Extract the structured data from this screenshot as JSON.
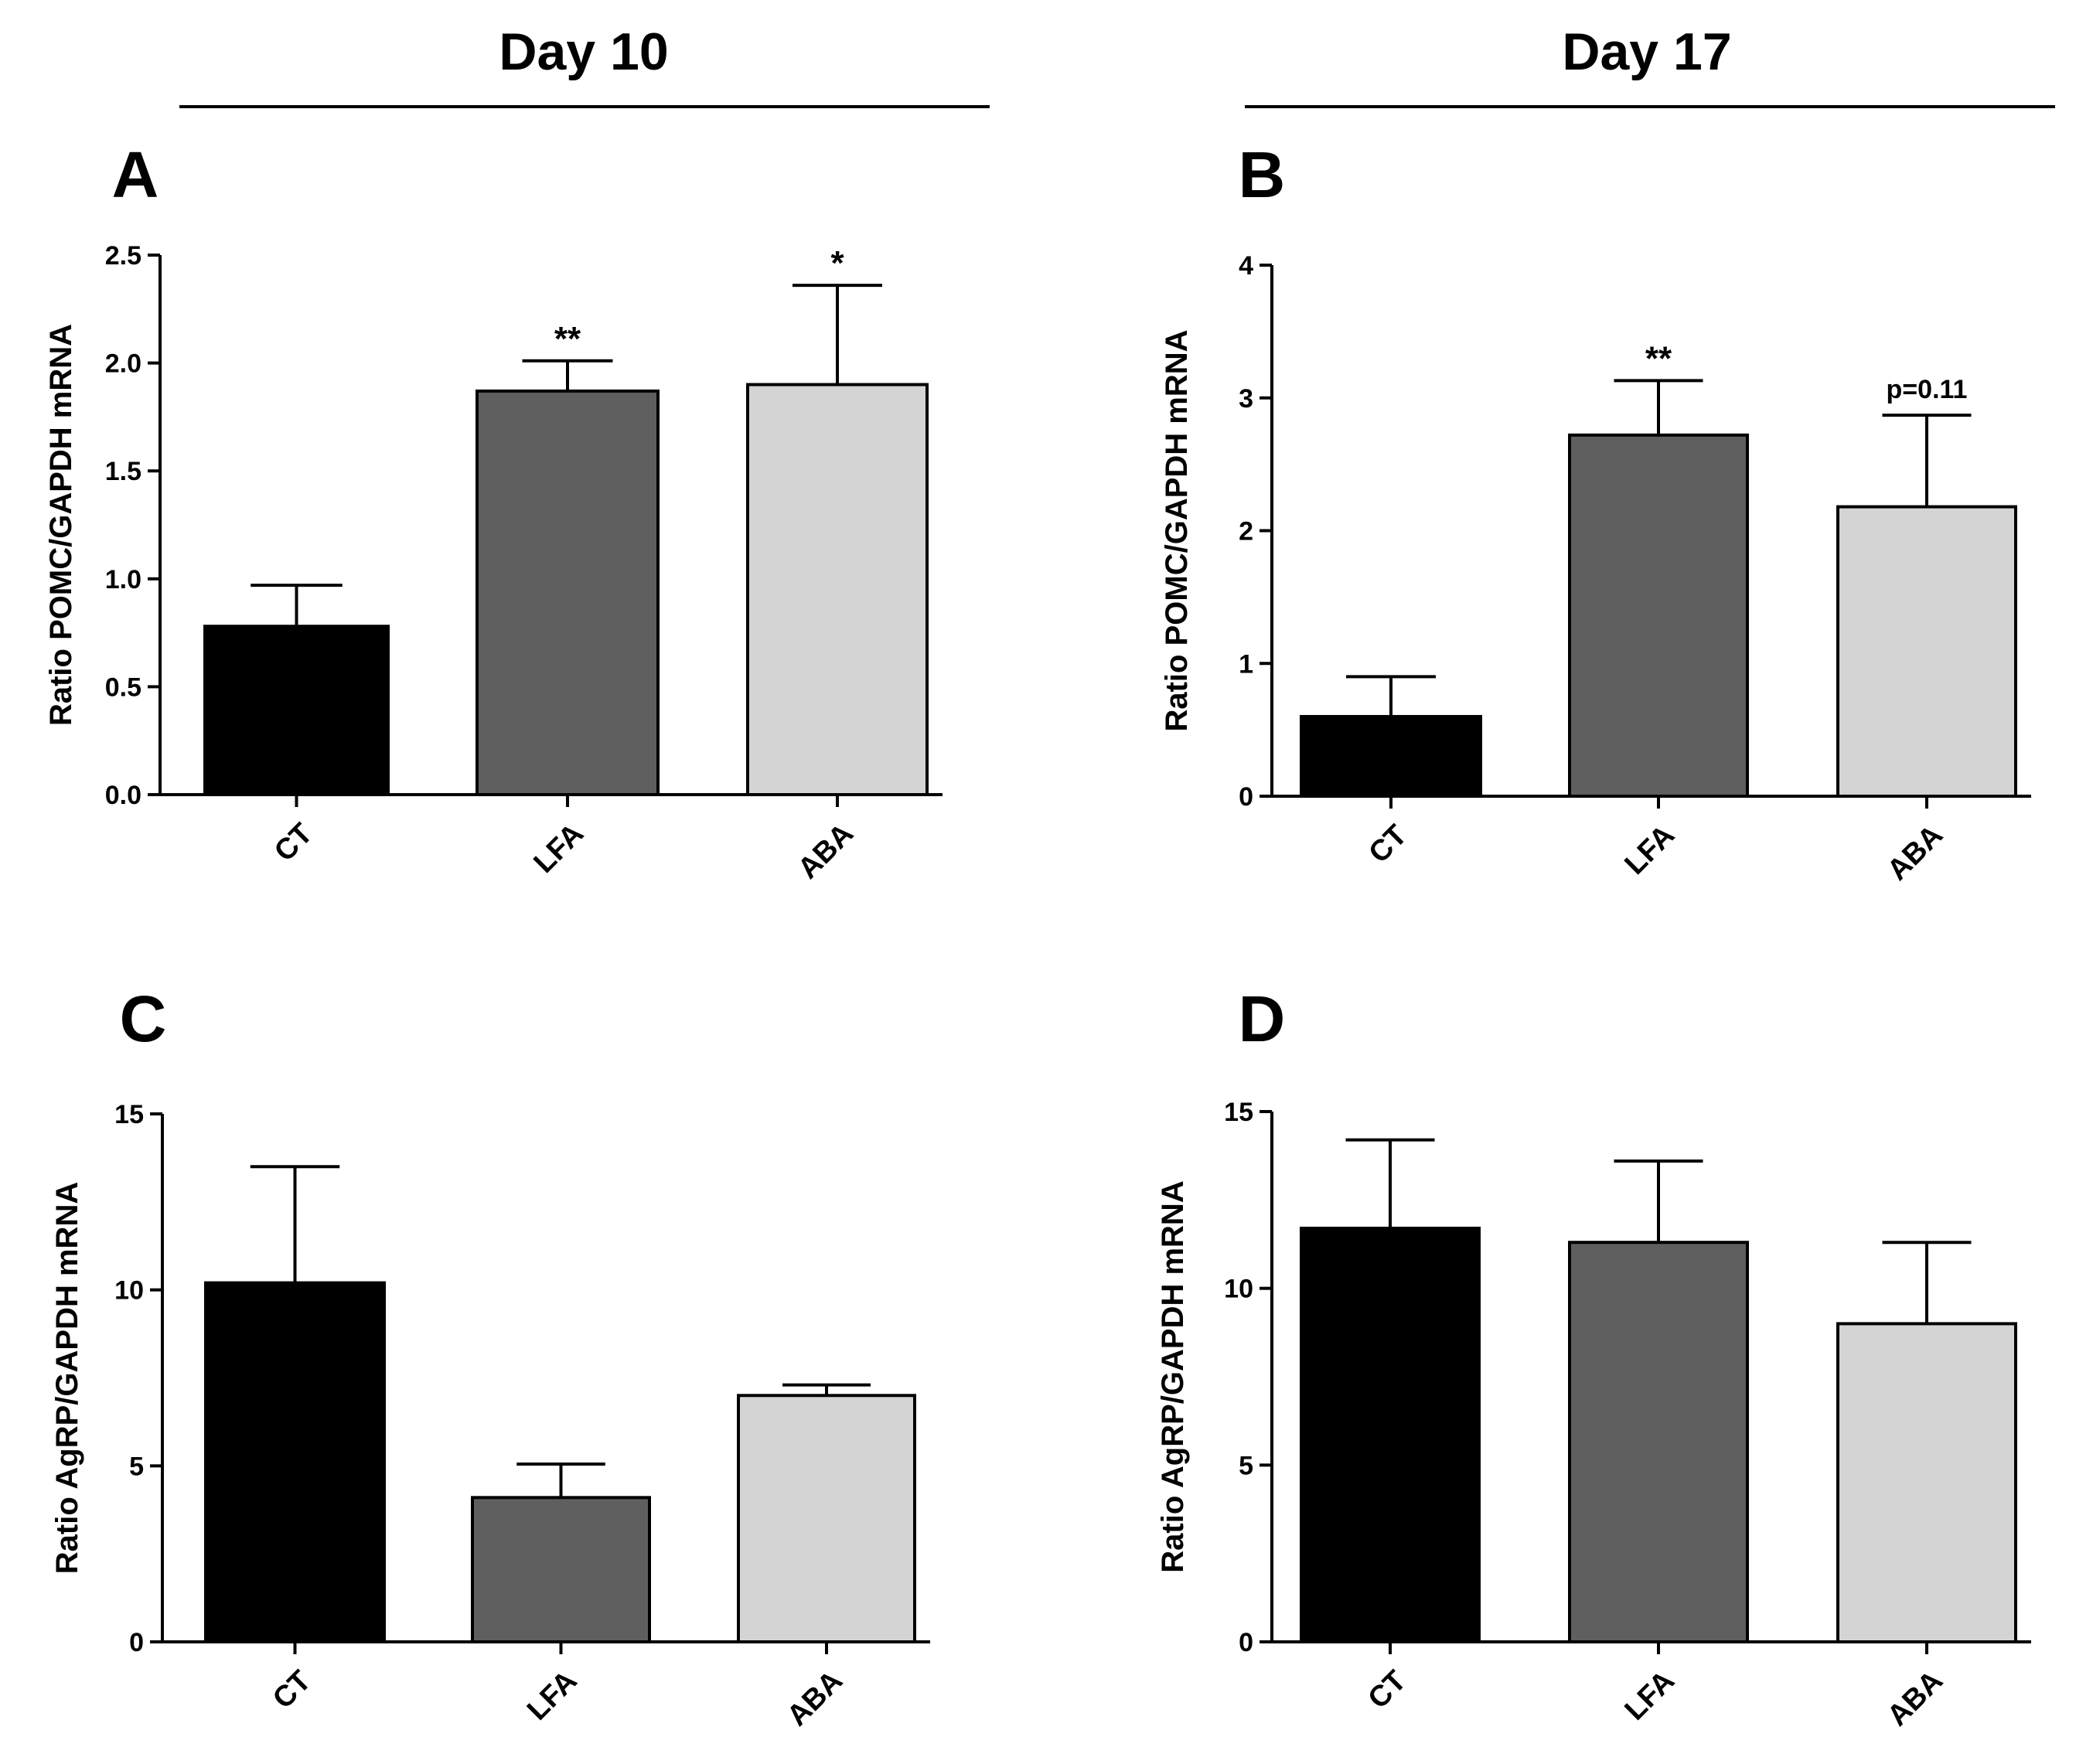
{
  "header": {
    "left_title": "Day 10",
    "right_title": "Day 17"
  },
  "colors": {
    "CT": "#000000",
    "LFA": "#5f5f5f",
    "ABA": "#d4d4d4"
  },
  "chart_data": [
    {
      "panel": "A",
      "type": "bar",
      "ylabel": "Ratio POMC/GAPDH mRNA",
      "categories": [
        "CT",
        "LFA",
        "ABA"
      ],
      "values": [
        0.78,
        1.87,
        1.9
      ],
      "errors": [
        0.19,
        0.14,
        0.46
      ],
      "annotations": [
        "",
        "**",
        "*"
      ],
      "ylim": [
        0,
        2.5
      ],
      "yticks": [
        0,
        0.5,
        1.0,
        1.5,
        2.0,
        2.5
      ],
      "ytick_labels": [
        "0.0",
        "0.5",
        "1.0",
        "1.5",
        "2.0",
        "2.5"
      ]
    },
    {
      "panel": "B",
      "type": "bar",
      "ylabel": "Ratio POMC/GAPDH mRNA",
      "categories": [
        "CT",
        "LFA",
        "ABA"
      ],
      "values": [
        0.6,
        2.72,
        2.18
      ],
      "errors": [
        0.3,
        0.41,
        0.69
      ],
      "annotations": [
        "",
        "**",
        "p=0.11"
      ],
      "ylim": [
        0,
        4
      ],
      "yticks": [
        0,
        1,
        2,
        3,
        4
      ],
      "ytick_labels": [
        "0",
        "1",
        "2",
        "3",
        "4"
      ]
    },
    {
      "panel": "C",
      "type": "bar",
      "ylabel": "Ratio AgRP/GAPDH mRNA",
      "categories": [
        "CT",
        "LFA",
        "ABA"
      ],
      "values": [
        10.2,
        4.1,
        7.0
      ],
      "errors": [
        3.3,
        0.95,
        0.3
      ],
      "annotations": [
        "",
        "",
        ""
      ],
      "ylim": [
        0,
        15
      ],
      "yticks": [
        0,
        5,
        10,
        15
      ],
      "ytick_labels": [
        "0",
        "5",
        "10",
        "15"
      ]
    },
    {
      "panel": "D",
      "type": "bar",
      "ylabel": "Ratio AgRP/GAPDH mRNA",
      "categories": [
        "CT",
        "LFA",
        "ABA"
      ],
      "values": [
        11.7,
        11.3,
        9.0
      ],
      "errors": [
        2.5,
        2.3,
        2.3
      ],
      "annotations": [
        "",
        "",
        ""
      ],
      "ylim": [
        0,
        15
      ],
      "yticks": [
        0,
        5,
        10,
        15
      ],
      "ytick_labels": [
        "0",
        "5",
        "10",
        "15"
      ]
    }
  ]
}
